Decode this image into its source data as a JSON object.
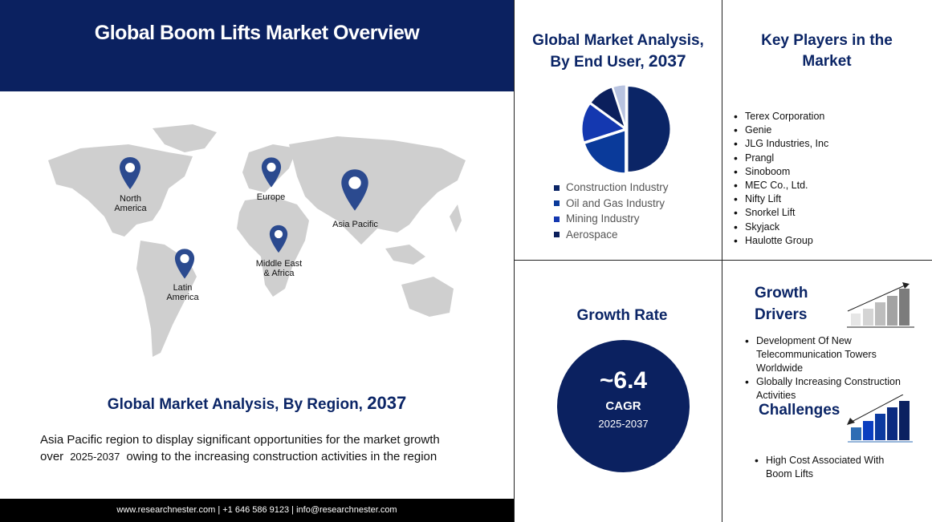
{
  "header": {
    "title": "Global Boom Lifts Market Overview"
  },
  "map": {
    "regions": [
      "North America",
      "Europe",
      "Asia Pacific",
      "Middle East & Africa",
      "Latin America"
    ]
  },
  "region_section": {
    "title": "Global Market Analysis, By Region,",
    "year": "2037",
    "text_before": "Asia Pacific region to display significant opportunities for the market growth over",
    "period": "2025-2037",
    "text_after": "owing to the increasing construction activities in the region"
  },
  "footer": {
    "text": "www.researchnester.com | +1 646 586 9123 | info@researchnester.com"
  },
  "end_user": {
    "title": "Global Market Analysis, By End User,",
    "year": "2037"
  },
  "chart_data": {
    "type": "pie",
    "categories": [
      "Construction Industry",
      "Oil and Gas Industry",
      "Mining Industry",
      "Aerospace",
      ""
    ],
    "values": [
      50,
      20,
      15,
      10,
      5
    ],
    "colors": [
      "#0b2566",
      "#0a3a9a",
      "#1438b0",
      "#0b1f5c",
      "#b8c3e0"
    ],
    "legend_position": "bottom"
  },
  "key_players": {
    "title": "Key Players in the Market",
    "items": [
      "Terex Corporation",
      "Genie",
      "JLG Industries, Inc",
      "Prangl",
      "Sinoboom",
      "MEC Co., Ltd.",
      "Nifty Lift",
      "Snorkel Lift",
      "Skyjack",
      "Haulotte Group"
    ]
  },
  "growth_rate": {
    "title": "Growth Rate",
    "value": "~6.4",
    "label": "CAGR",
    "period": "2025-2037"
  },
  "drivers": {
    "title": "Growth Drivers",
    "items": [
      "Development Of New Telecommunication Towers Worldwide",
      "Globally Increasing Construction Activities"
    ]
  },
  "challenges": {
    "title": "Challenges",
    "items": [
      "High Cost Associated With Boom Lifts"
    ]
  }
}
